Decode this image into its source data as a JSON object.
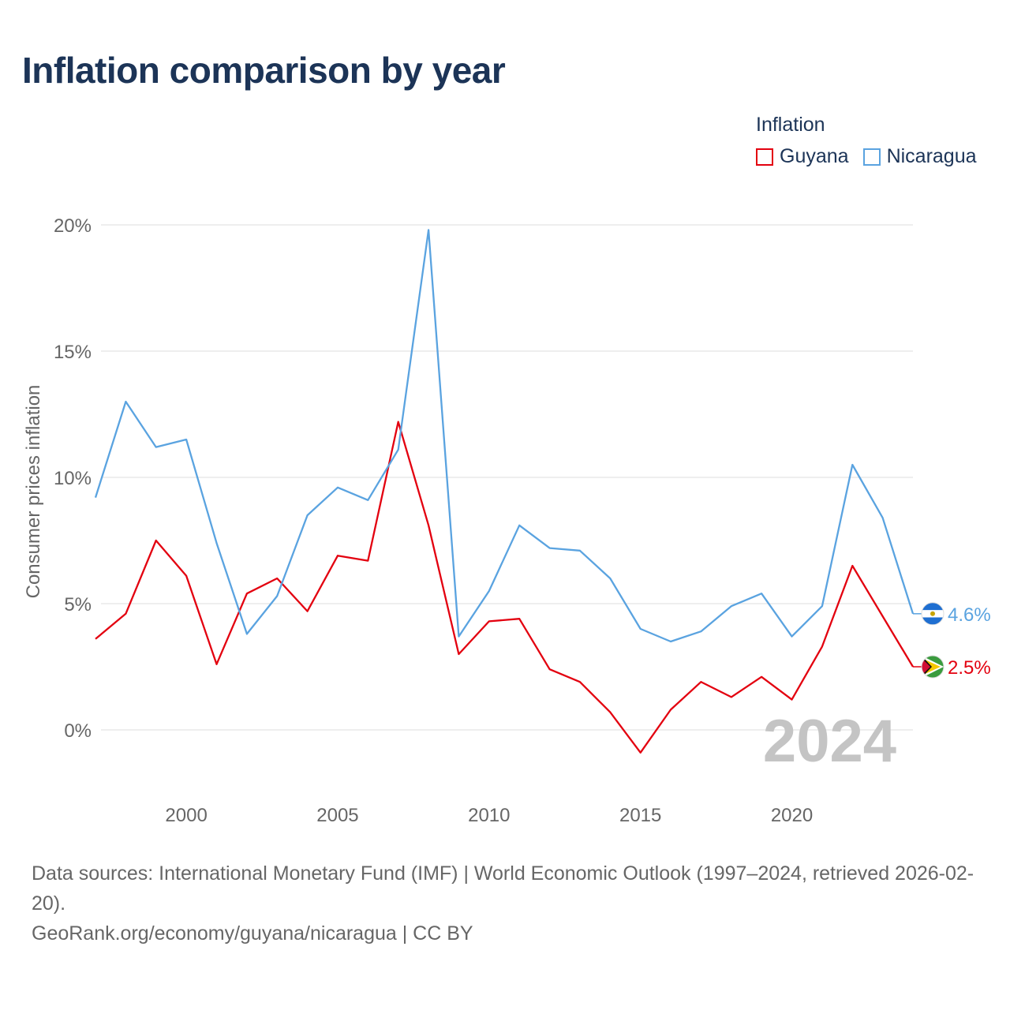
{
  "title": "Inflation comparison by year",
  "legend": {
    "title": "Inflation",
    "items": [
      {
        "label": "Guyana",
        "color": "#e3000f"
      },
      {
        "label": "Nicaragua",
        "color": "#5aa3e0"
      }
    ]
  },
  "chart_data": {
    "type": "line",
    "title": "Inflation comparison by year",
    "xlabel": "",
    "ylabel": "Consumer prices inflation",
    "x": [
      1997,
      1998,
      1999,
      2000,
      2001,
      2002,
      2003,
      2004,
      2005,
      2006,
      2007,
      2008,
      2009,
      2010,
      2011,
      2012,
      2013,
      2014,
      2015,
      2016,
      2017,
      2018,
      2019,
      2020,
      2021,
      2022,
      2023,
      2024
    ],
    "xlim": [
      1997,
      2024
    ],
    "ylim": [
      -3,
      21
    ],
    "x_ticks": [
      2000,
      2005,
      2010,
      2015,
      2020
    ],
    "y_ticks": [
      0,
      5,
      10,
      15,
      20
    ],
    "y_tick_labels": [
      "0%",
      "5%",
      "10%",
      "15%",
      "20%"
    ],
    "grid": true,
    "year_watermark": "2024",
    "series": [
      {
        "name": "Guyana",
        "color": "#e3000f",
        "end_label": "2.5%",
        "values": [
          3.6,
          4.6,
          7.5,
          6.1,
          2.6,
          5.4,
          6.0,
          4.7,
          6.9,
          6.7,
          12.2,
          8.1,
          3.0,
          4.3,
          4.4,
          2.4,
          1.9,
          0.7,
          -0.9,
          0.8,
          1.9,
          1.3,
          2.1,
          1.2,
          3.3,
          6.5,
          4.5,
          2.5
        ]
      },
      {
        "name": "Nicaragua",
        "color": "#5aa3e0",
        "end_label": "4.6%",
        "values": [
          9.2,
          13.0,
          11.2,
          11.5,
          7.4,
          3.8,
          5.3,
          8.5,
          9.6,
          9.1,
          11.1,
          19.8,
          3.7,
          5.5,
          8.1,
          7.2,
          7.1,
          6.0,
          4.0,
          3.5,
          3.9,
          4.9,
          5.4,
          3.7,
          4.9,
          10.5,
          8.4,
          4.6
        ]
      }
    ]
  },
  "footer": {
    "sources": "Data sources: International Monetary Fund (IMF) | World Economic Outlook (1997–2024, retrieved 2026-02-20).",
    "credit": "GeoRank.org/economy/guyana/nicaragua | CC BY"
  }
}
